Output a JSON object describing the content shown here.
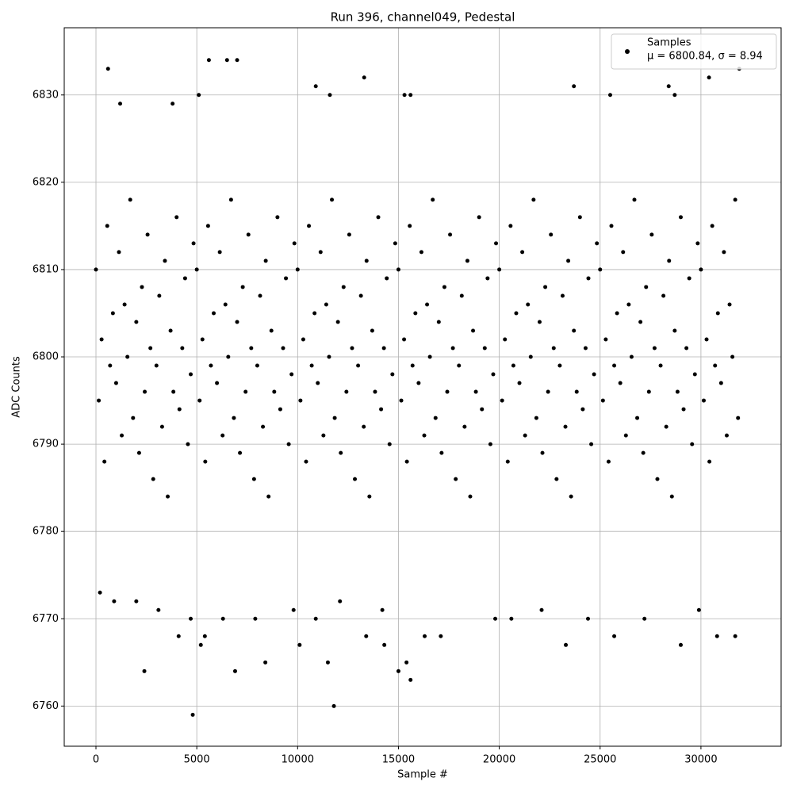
{
  "chart_data": {
    "type": "scatter",
    "title": "Run 396, channel049, Pedestal",
    "x_label": "Sample #",
    "y_label": "ADC Counts",
    "legend_stats": "μ = 6800.84, σ = 8.94",
    "legend_position": "upper right",
    "grid": true,
    "xlim": [
      -1573,
      33975
    ],
    "ylim": [
      6755.4,
      6837.7
    ],
    "xticks": [
      0,
      5000,
      10000,
      15000,
      20000,
      25000,
      30000
    ],
    "yticks": [
      6760,
      6770,
      6780,
      6790,
      6800,
      6810,
      6820,
      6830
    ],
    "series": [
      {
        "name": "Samples",
        "color": "#000000",
        "x": [
          0,
          140,
          280,
          420,
          560,
          700,
          840,
          1000,
          1140,
          1280,
          1420,
          1560,
          1700,
          1840,
          2000,
          2140,
          2280,
          2420,
          2560,
          2700,
          2840,
          3000,
          3140,
          3280,
          3420,
          3560,
          3700,
          3840,
          4000,
          4140,
          4280,
          4420,
          4560,
          4700,
          4840,
          5000,
          5140,
          5280,
          5420,
          5560,
          5700,
          5840,
          6000,
          6140,
          6280,
          6420,
          6560,
          6700,
          6840,
          7000,
          7140,
          7280,
          7420,
          7560,
          7700,
          7840,
          8000,
          8140,
          8280,
          8420,
          8560,
          8700,
          8840,
          9000,
          9140,
          9280,
          9420,
          9560,
          9700,
          9840,
          10000,
          10140,
          10280,
          10420,
          10560,
          10700,
          10840,
          11000,
          11140,
          11280,
          11420,
          11560,
          11700,
          11840,
          12000,
          12140,
          12280,
          12420,
          12560,
          12700,
          12840,
          13000,
          13140,
          13280,
          13420,
          13560,
          13700,
          13840,
          14000,
          14140,
          14280,
          14420,
          14560,
          14700,
          14840,
          15000,
          15140,
          15280,
          15420,
          15560,
          15700,
          15840,
          16000,
          16140,
          16280,
          16420,
          16560,
          16700,
          16840,
          17000,
          17140,
          17280,
          17420,
          17560,
          17700,
          17840,
          18000,
          18140,
          18280,
          18420,
          18560,
          18700,
          18840,
          19000,
          19140,
          19280,
          19420,
          19560,
          19700,
          19840,
          20000,
          20140,
          20280,
          20420,
          20560,
          20700,
          20840,
          21000,
          21140,
          21280,
          21420,
          21560,
          21700,
          21840,
          22000,
          22140,
          22280,
          22420,
          22560,
          22700,
          22840,
          23000,
          23140,
          23280,
          23420,
          23560,
          23700,
          23840,
          24000,
          24140,
          24280,
          24420,
          24560,
          24700,
          24840,
          25000,
          25140,
          25280,
          25420,
          25560,
          25700,
          25840,
          26000,
          26140,
          26280,
          26420,
          26560,
          26700,
          26840,
          27000,
          27140,
          27280,
          27420,
          27560,
          27700,
          27840,
          28000,
          28140,
          28280,
          28420,
          28560,
          28700,
          28840,
          29000,
          29140,
          29280,
          29420,
          29560,
          29700,
          29840,
          30000,
          30140,
          30280,
          30420,
          30560,
          30700,
          30840,
          31000,
          31140,
          31280,
          31420,
          31560,
          31700,
          31840,
          600,
          5600,
          6500,
          7000,
          10900,
          11600,
          13300,
          15300,
          15600,
          23700,
          25500,
          28400,
          28700,
          30400,
          31900,
          1200,
          3800,
          5100,
          2400,
          4800,
          6900,
          11800,
          8400,
          11500,
          15000,
          15400,
          15600,
          29000,
          5200,
          10100,
          14300,
          23300,
          4100,
          5400,
          13400,
          16300,
          17100,
          25700,
          30800,
          31700,
          4700,
          6300,
          7900,
          10900,
          19800,
          24400,
          27200,
          200,
          900,
          2000,
          3100,
          9800,
          14200,
          22100,
          29900,
          20600,
          12100
        ],
        "values": [
          6810,
          6795,
          6802,
          6788,
          6815,
          6799,
          6805,
          6797,
          6812,
          6791,
          6806,
          6800,
          6818,
          6793,
          6804,
          6789,
          6808,
          6796,
          6814,
          6801,
          6786,
          6799,
          6807,
          6792,
          6811,
          6784,
          6803,
          6796,
          6816,
          6794,
          6801,
          6809,
          6790,
          6798,
          6813,
          6810,
          6795,
          6802,
          6788,
          6815,
          6799,
          6805,
          6797,
          6812,
          6791,
          6806,
          6800,
          6818,
          6793,
          6804,
          6789,
          6808,
          6796,
          6814,
          6801,
          6786,
          6799,
          6807,
          6792,
          6811,
          6784,
          6803,
          6796,
          6816,
          6794,
          6801,
          6809,
          6790,
          6798,
          6813,
          6810,
          6795,
          6802,
          6788,
          6815,
          6799,
          6805,
          6797,
          6812,
          6791,
          6806,
          6800,
          6818,
          6793,
          6804,
          6789,
          6808,
          6796,
          6814,
          6801,
          6786,
          6799,
          6807,
          6792,
          6811,
          6784,
          6803,
          6796,
          6816,
          6794,
          6801,
          6809,
          6790,
          6798,
          6813,
          6810,
          6795,
          6802,
          6788,
          6815,
          6799,
          6805,
          6797,
          6812,
          6791,
          6806,
          6800,
          6818,
          6793,
          6804,
          6789,
          6808,
          6796,
          6814,
          6801,
          6786,
          6799,
          6807,
          6792,
          6811,
          6784,
          6803,
          6796,
          6816,
          6794,
          6801,
          6809,
          6790,
          6798,
          6813,
          6810,
          6795,
          6802,
          6788,
          6815,
          6799,
          6805,
          6797,
          6812,
          6791,
          6806,
          6800,
          6818,
          6793,
          6804,
          6789,
          6808,
          6796,
          6814,
          6801,
          6786,
          6799,
          6807,
          6792,
          6811,
          6784,
          6803,
          6796,
          6816,
          6794,
          6801,
          6809,
          6790,
          6798,
          6813,
          6810,
          6795,
          6802,
          6788,
          6815,
          6799,
          6805,
          6797,
          6812,
          6791,
          6806,
          6800,
          6818,
          6793,
          6804,
          6789,
          6808,
          6796,
          6814,
          6801,
          6786,
          6799,
          6807,
          6792,
          6811,
          6784,
          6803,
          6796,
          6816,
          6794,
          6801,
          6809,
          6790,
          6798,
          6813,
          6810,
          6795,
          6802,
          6788,
          6815,
          6799,
          6805,
          6797,
          6812,
          6791,
          6806,
          6800,
          6818,
          6793,
          6833,
          6834,
          6834,
          6834,
          6831,
          6830,
          6832,
          6830,
          6830,
          6831,
          6830,
          6831,
          6830,
          6832,
          6833,
          6829,
          6829,
          6830,
          6764,
          6759,
          6764,
          6760,
          6765,
          6765,
          6764,
          6765,
          6763,
          6767,
          6767,
          6767,
          6767,
          6767,
          6768,
          6768,
          6768,
          6768,
          6768,
          6768,
          6768,
          6768,
          6770,
          6770,
          6770,
          6770,
          6770,
          6770,
          6770,
          6773,
          6772,
          6772,
          6771,
          6771,
          6771,
          6771,
          6771,
          6770,
          6772
        ]
      }
    ]
  }
}
